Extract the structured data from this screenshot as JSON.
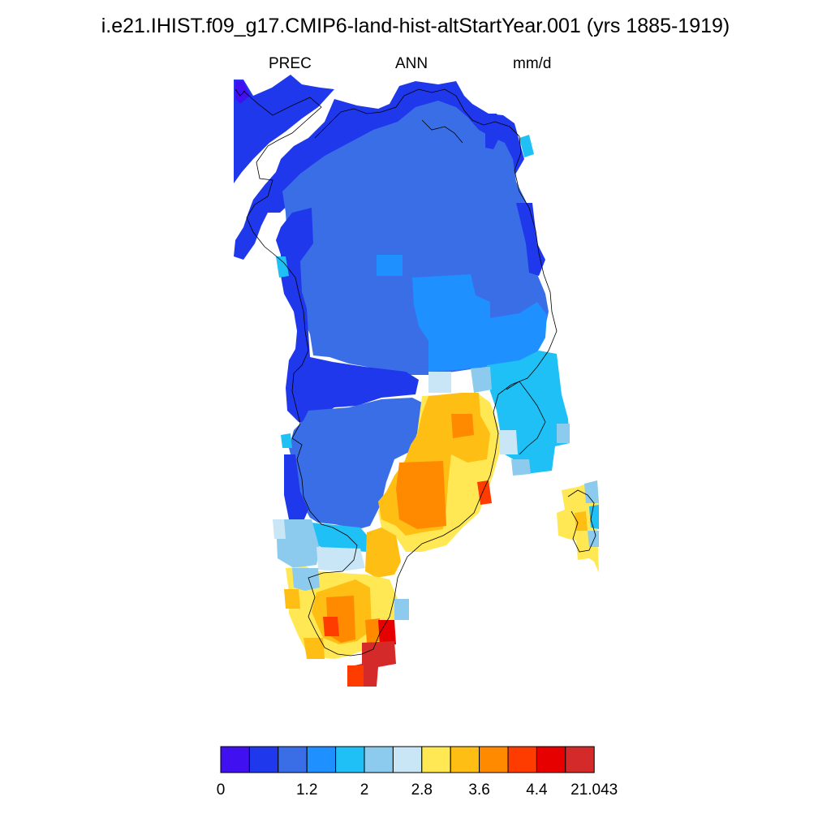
{
  "title": "i.e21.IHIST.f09_g17.CMIP6-land-hist-altStartYear.001 (yrs 1885-1919)",
  "variable": "PREC",
  "period": "ANN",
  "units": "mm/d",
  "colorbar": {
    "colors": [
      "#4010f0",
      "#2038ec",
      "#3a6ee6",
      "#1e90ff",
      "#1ec0f6",
      "#8ccaee",
      "#c8e6f6",
      "#ffe854",
      "#ffbe14",
      "#ff8a00",
      "#ff3c00",
      "#e60000",
      "#d42a2a"
    ],
    "tick_labels": [
      {
        "slot": 0,
        "text": "0"
      },
      {
        "slot": 3,
        "text": "1.2"
      },
      {
        "slot": 5,
        "text": "2"
      },
      {
        "slot": 7,
        "text": "2.8"
      },
      {
        "slot": 9,
        "text": "3.6"
      },
      {
        "slot": 11,
        "text": "4.4"
      },
      {
        "slot": 13,
        "text": "21.043"
      }
    ]
  }
}
